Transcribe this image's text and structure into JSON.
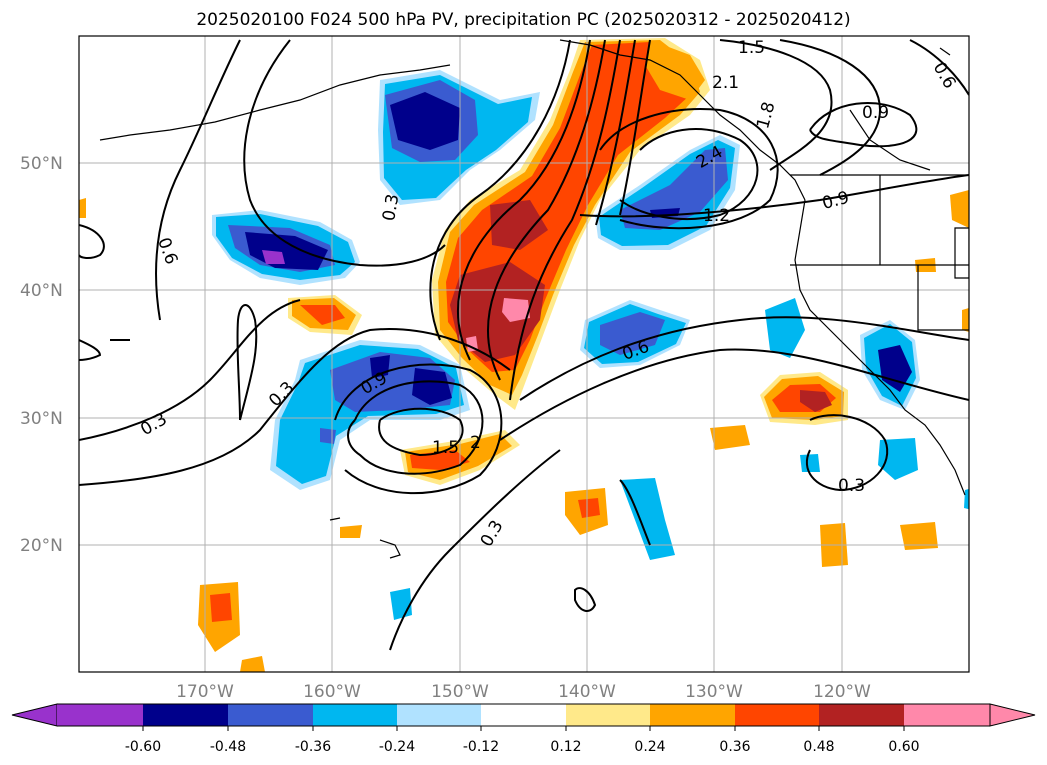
{
  "title": "2025020100 F024 500 hPa PV, precipitation PC (2025020312 - 2025020412)",
  "map": {
    "lat_labels": [
      "50°N",
      "40°N",
      "30°N",
      "20°N"
    ],
    "lon_labels": [
      "170°W",
      "160°W",
      "150°W",
      "140°W",
      "130°W",
      "120°W"
    ],
    "contour_labels": [
      "1.5",
      "2.1",
      "0.6",
      "1.8",
      "0.9",
      "2.4",
      "1.2",
      "0.9",
      "0.3",
      "0.6",
      "0.3",
      "0.9",
      "0.3",
      "1.5",
      "2",
      "0.6",
      "0.3",
      "0.3"
    ]
  },
  "colorbar": {
    "ticks": [
      "-0.60",
      "-0.48",
      "-0.36",
      "-0.24",
      "-0.12",
      "0.12",
      "0.24",
      "0.36",
      "0.48",
      "0.60"
    ],
    "colors": [
      "#9932cc",
      "#00008b",
      "#3a5bd0",
      "#00b7f0",
      "#b0e2ff",
      "#ffffff",
      "#ffe98a",
      "#ffa500",
      "#ff4500",
      "#b22222",
      "#ff88aa"
    ]
  }
}
